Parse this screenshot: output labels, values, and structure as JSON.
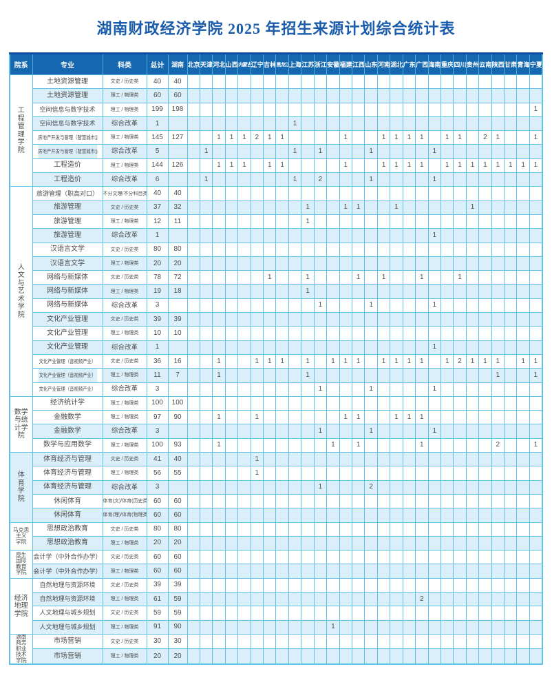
{
  "page_title": "湖南财政经济学院 2025 年招生来源计划综合统计表",
  "colors": {
    "header_bg": "#1567af",
    "header_top_edge": "#0f4ea0",
    "grid_border": "#5fc0e8",
    "row_stripe": "#dbeffa",
    "title_text": "#1a5cab",
    "cell_text": "#4c4c4c"
  },
  "table": {
    "columns": {
      "college": "院系",
      "major": "专业",
      "category": "科类",
      "total": "总计"
    },
    "province_columns": [
      "湖南",
      "北京",
      "天津",
      "河北",
      "山西",
      "内蒙古",
      "辽宁",
      "吉林",
      "黑龙江",
      "上海",
      "江苏",
      "浙江",
      "安徽",
      "福建",
      "江西",
      "山东",
      "河南",
      "湖北",
      "广东",
      "广西",
      "海南",
      "重庆",
      "四川",
      "贵州",
      "云南",
      "陕西",
      "甘肃",
      "青海",
      "宁夏"
    ],
    "sections": [
      {
        "college": "工程管理学院",
        "display": "工\n程\n管\n理\n学\n院",
        "rows": [
          {
            "major": "土地资源管理",
            "category": "文史 / 历史类",
            "total": 40,
            "values": {
              "湖南": 40
            }
          },
          {
            "major": "土地资源管理",
            "category": "理工 / 物理类",
            "total": 60,
            "values": {
              "湖南": 60
            }
          },
          {
            "major": "空间信息与数字技术",
            "category": "理工 / 物理类",
            "total": 199,
            "values": {
              "湖南": 198,
              "宁夏": 1
            }
          },
          {
            "major": "空间信息与数字技术",
            "category": "综合改革",
            "total": 1,
            "values": {
              "上海": 1
            }
          },
          {
            "major": "房地产开发与管理（智慧城市运营）",
            "category": "理工 / 物理类",
            "total": 145,
            "values": {
              "湖南": 127,
              "河北": 1,
              "山西": 1,
              "内蒙古": 1,
              "辽宁": 2,
              "吉林": 1,
              "黑龙江": 1,
              "福建": 1,
              "河南": 1,
              "湖北": 1,
              "广东": 1,
              "广西": 1,
              "重庆": 1,
              "四川": 1,
              "云南": 2,
              "陕西": 1,
              "宁夏": 1
            }
          },
          {
            "major": "房地产开发与管理（智慧城市运营）",
            "category": "综合改革",
            "total": 5,
            "values": {
              "天津": 1,
              "上海": 1,
              "浙江": 1,
              "山东": 1,
              "海南": 1
            }
          },
          {
            "major": "工程造价",
            "category": "理工 / 物理类",
            "total": 144,
            "values": {
              "湖南": 126,
              "河北": 1,
              "山西": 1,
              "内蒙古": 1,
              "吉林": 1,
              "黑龙江": 1,
              "福建": 1,
              "河南": 1,
              "湖北": 1,
              "广东": 1,
              "广西": 1,
              "重庆": 1,
              "四川": 1,
              "贵州": 1,
              "云南": 1,
              "陕西": 1,
              "甘肃": 1,
              "青海": 1,
              "宁夏": 1
            }
          },
          {
            "major": "工程造价",
            "category": "综合改革",
            "total": 6,
            "values": {
              "天津": 1,
              "上海": 1,
              "浙江": 2,
              "山东": 1,
              "海南": 1
            }
          }
        ]
      },
      {
        "college": "人文与艺术学院",
        "display": "人\n文\n与\n艺\n术\n学\n院",
        "rows": [
          {
            "major": "旅游管理（职高对口）",
            "category": "不分文理/不分科目类",
            "total": 40,
            "values": {
              "湖南": 40
            }
          },
          {
            "major": "旅游管理",
            "category": "文史 / 历史类",
            "total": 37,
            "values": {
              "湖南": 32,
              "江苏": 1,
              "福建": 1,
              "江西": 1,
              "湖北": 1,
              "贵州": 1
            }
          },
          {
            "major": "旅游管理",
            "category": "理工 / 物理类",
            "total": 12,
            "values": {
              "湖南": 11,
              "江苏": 1
            }
          },
          {
            "major": "旅游管理",
            "category": "综合改革",
            "total": 1,
            "values": {
              "海南": 1
            }
          },
          {
            "major": "汉语言文学",
            "category": "文史 / 历史类",
            "total": 80,
            "values": {
              "湖南": 80
            }
          },
          {
            "major": "汉语言文学",
            "category": "理工 / 物理类",
            "total": 20,
            "values": {
              "湖南": 20
            }
          },
          {
            "major": "网络与新媒体",
            "category": "文史 / 历史类",
            "total": 78,
            "values": {
              "湖南": 72,
              "吉林": 1,
              "江苏": 1,
              "江西": 1,
              "河南": 1,
              "广西": 1,
              "四川": 1
            }
          },
          {
            "major": "网络与新媒体",
            "category": "理工 / 物理类",
            "total": 19,
            "values": {
              "湖南": 18,
              "江苏": 1
            }
          },
          {
            "major": "网络与新媒体",
            "category": "综合改革",
            "total": 3,
            "values": {
              "浙江": 1,
              "山东": 1,
              "海南": 1
            }
          },
          {
            "major": "文化产业管理",
            "category": "文史 / 历史类",
            "total": 39,
            "values": {
              "湖南": 39
            }
          },
          {
            "major": "文化产业管理",
            "category": "理工 / 物理类",
            "total": 10,
            "values": {
              "湖南": 10
            }
          },
          {
            "major": "文化产业管理",
            "category": "综合改革",
            "total": 1,
            "values": {
              "海南": 1
            }
          },
          {
            "major": "文化产业管理（音视频产业）",
            "category": "文史 / 历史类",
            "total": 36,
            "values": {
              "湖南": 16,
              "河北": 1,
              "辽宁": 1,
              "吉林": 1,
              "黑龙江": 1,
              "江苏": 1,
              "安徽": 1,
              "福建": 1,
              "江西": 1,
              "河南": 1,
              "湖北": 1,
              "广东": 1,
              "广西": 1,
              "重庆": 1,
              "四川": 2,
              "贵州": 1,
              "云南": 1,
              "陕西": 1,
              "青海": 1,
              "宁夏": 1
            }
          },
          {
            "major": "文化产业管理（音视频产业）",
            "category": "理工 / 物理类",
            "total": 11,
            "values": {
              "湖南": 7,
              "河北": 1,
              "江苏": 1,
              "陕西": 1,
              "宁夏": 1
            }
          },
          {
            "major": "文化产业管理（音视频产业）",
            "category": "综合改革",
            "total": 3,
            "values": {
              "浙江": 1,
              "山东": 1,
              "海南": 1
            }
          }
        ]
      },
      {
        "college": "数学与统计学院",
        "display": "数学\n与统\n计学\n院",
        "rows": [
          {
            "major": "经济统计学",
            "category": "理工 / 物理类",
            "total": 100,
            "values": {
              "湖南": 100
            }
          },
          {
            "major": "金融数学",
            "category": "理工 / 物理类",
            "total": 97,
            "values": {
              "湖南": 90,
              "河北": 1,
              "辽宁": 1,
              "福建": 1,
              "江西": 1,
              "湖北": 1,
              "广东": 1,
              "广西": 1
            }
          },
          {
            "major": "金融数学",
            "category": "综合改革",
            "total": 3,
            "values": {
              "浙江": 1,
              "山东": 1,
              "海南": 1
            }
          },
          {
            "major": "数学与应用数学",
            "category": "理工 / 物理类",
            "total": 100,
            "values": {
              "湖南": 93,
              "河北": 1,
              "安徽": 1,
              "江西": 1,
              "广西": 1,
              "陕西": 2,
              "宁夏": 1
            }
          }
        ]
      },
      {
        "college": "体育学院",
        "display": "体\n育\n学\n院",
        "rows": [
          {
            "major": "体育经济与管理",
            "category": "文史 / 历史类",
            "total": 41,
            "values": {
              "湖南": 40,
              "辽宁": 1
            }
          },
          {
            "major": "体育经济与管理",
            "category": "理工 / 物理类",
            "total": 56,
            "values": {
              "湖南": 55,
              "辽宁": 1
            }
          },
          {
            "major": "体育经济与管理",
            "category": "综合改革",
            "total": 3,
            "values": {
              "浙江": 1,
              "山东": 2
            }
          },
          {
            "major": "休闲体育",
            "category": "体育(文)/体育(历史类)",
            "total": 60,
            "values": {
              "湖南": 60
            }
          },
          {
            "major": "休闲体育",
            "category": "体育(理)/体育(物理类)",
            "total": 60,
            "values": {
              "湖南": 60
            }
          }
        ]
      },
      {
        "college": "马克思主义学院",
        "display": "马克思\n主义\n学院",
        "rows": [
          {
            "major": "思想政治教育",
            "category": "文史 / 历史类",
            "total": 80,
            "values": {
              "湖南": 80
            }
          },
          {
            "major": "思想政治教育",
            "category": "理工 / 物理类",
            "total": 20,
            "values": {
              "湖南": 20
            }
          }
        ]
      },
      {
        "college": "厚生国际教育学院",
        "display": "厚生\n国际\n教育\n学院",
        "rows": [
          {
            "major": "会计学（中外合作办学）",
            "category": "文史 / 历史类",
            "total": 60,
            "values": {
              "湖南": 60
            }
          },
          {
            "major": "会计学（中外合作办学）",
            "category": "理工 / 物理类",
            "total": 60,
            "values": {
              "湖南": 60
            }
          }
        ]
      },
      {
        "college": "经济地理学院",
        "display": "经济\n地理\n学院",
        "rows": [
          {
            "major": "自然地理与资源环境",
            "category": "文史 / 历史类",
            "total": 39,
            "values": {
              "湖南": 39
            }
          },
          {
            "major": "自然地理与资源环境",
            "category": "理工 / 物理类",
            "total": 61,
            "values": {
              "湖南": 59,
              "广西": 2
            }
          },
          {
            "major": "人文地理与城乡规划",
            "category": "文史 / 历史类",
            "total": 59,
            "values": {
              "湖南": 59
            }
          },
          {
            "major": "人文地理与城乡规划",
            "category": "理工 / 物理类",
            "total": 91,
            "values": {
              "湖南": 90,
              "安徽": 1
            }
          }
        ]
      },
      {
        "college": "湖南商务职业技术学院",
        "display": "湖南\n商务\n职业\n技术\n学院",
        "rows": [
          {
            "major": "市场营销",
            "category": "文史 / 历史类",
            "total": 30,
            "values": {
              "湖南": 30
            }
          },
          {
            "major": "市场营销",
            "category": "理工 / 物理类",
            "total": 20,
            "values": {
              "湖南": 20
            }
          }
        ]
      }
    ]
  }
}
